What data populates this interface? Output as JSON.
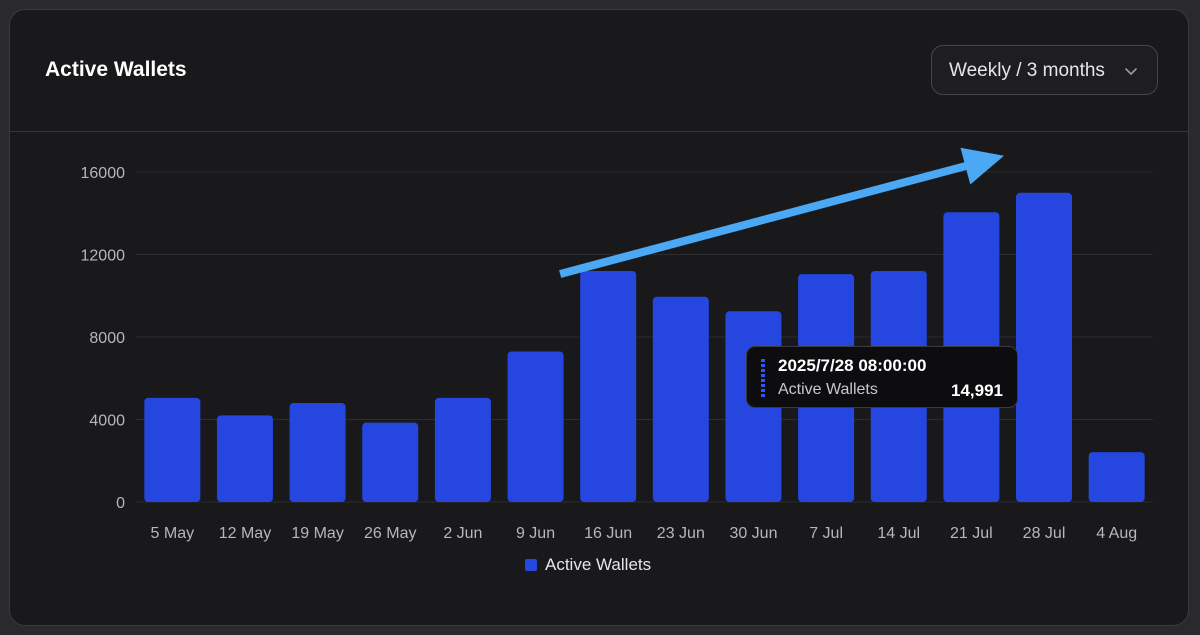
{
  "card": {
    "title": "Active Wallets",
    "period_select": {
      "value": "Weekly / 3 months",
      "icon": "chevron-down-icon"
    }
  },
  "tooltip": {
    "timestamp": "2025/7/28 08:00:00",
    "series": "Active Wallets",
    "value": "14,991"
  },
  "legend": {
    "label": "Active Wallets"
  },
  "colors": {
    "bar": "#2547e0",
    "arrow": "#4aa8f5",
    "grid": "#2c2c31",
    "background": "#19191b"
  },
  "chart_data": {
    "type": "bar",
    "title": "Active Wallets",
    "xlabel": "",
    "ylabel": "",
    "categories": [
      "5 May",
      "12 May",
      "19 May",
      "26 May",
      "2 Jun",
      "9 Jun",
      "16 Jun",
      "23 Jun",
      "30 Jun",
      "7 Jul",
      "14 Jul",
      "21 Jul",
      "28 Jul",
      "4 Aug"
    ],
    "series": [
      {
        "name": "Active Wallets",
        "values": [
          5050,
          4200,
          4800,
          3850,
          5050,
          7300,
          11200,
          9950,
          9250,
          11050,
          11200,
          14050,
          14991,
          2420
        ]
      }
    ],
    "yticks": [
      0,
      4000,
      8000,
      12000,
      16000
    ],
    "ylim": [
      0,
      16000
    ],
    "grid": true,
    "legend": "bottom-center",
    "annotations": [
      {
        "type": "arrow",
        "from_category": "16 Jun",
        "to_category": "28 Jul",
        "direction": "upward trend"
      }
    ]
  }
}
